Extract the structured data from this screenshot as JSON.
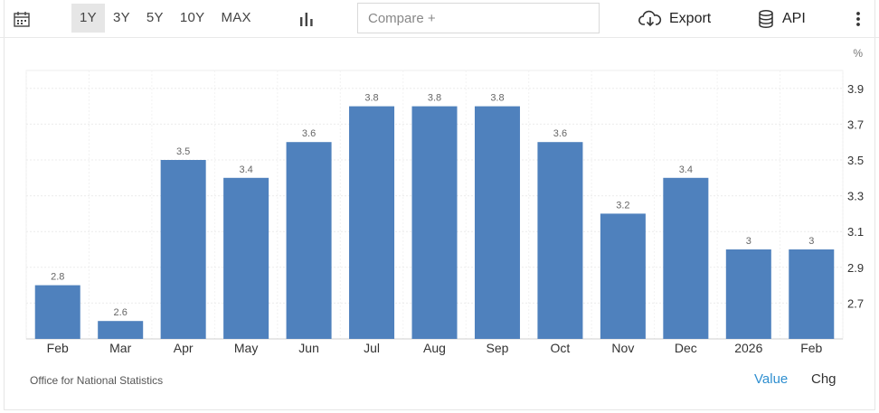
{
  "toolbar": {
    "calendar_icon": "calendar-icon",
    "ranges": [
      "1Y",
      "3Y",
      "5Y",
      "10Y",
      "MAX"
    ],
    "active_range": "1Y",
    "chart_type_icon": "bar-chart-icon",
    "compare_placeholder": "Compare +",
    "export_label": "Export",
    "export_icon": "cloud-download-icon",
    "api_label": "API",
    "api_icon": "database-icon",
    "more_icon": "vertical-dots-icon"
  },
  "footer": {
    "source": "Office for National Statistics",
    "value_label": "Value",
    "chg_label": "Chg"
  },
  "colors": {
    "bar": "#4f81bd",
    "active_toggle": "#2f8fd0",
    "grid": "#ececec"
  },
  "chart_data": {
    "type": "bar",
    "unit": "%",
    "categories": [
      "Feb",
      "Mar",
      "Apr",
      "May",
      "Jun",
      "Jul",
      "Aug",
      "Sep",
      "Oct",
      "Nov",
      "Dec",
      "2026",
      "Feb"
    ],
    "values": [
      2.8,
      2.6,
      3.5,
      3.4,
      3.6,
      3.8,
      3.8,
      3.8,
      3.6,
      3.2,
      3.4,
      3,
      3
    ],
    "data_labels": [
      "2.8",
      "2.6",
      "3.5",
      "3.4",
      "3.6",
      "3.8",
      "3.8",
      "3.8",
      "3.6",
      "3.2",
      "3.4",
      "3",
      "3"
    ],
    "y_ticks": [
      2.7,
      2.9,
      3.1,
      3.3,
      3.5,
      3.7,
      3.9
    ],
    "ylim": [
      2.5,
      4.0
    ],
    "y_axis_position": "right",
    "grid": true,
    "legend": "none"
  }
}
